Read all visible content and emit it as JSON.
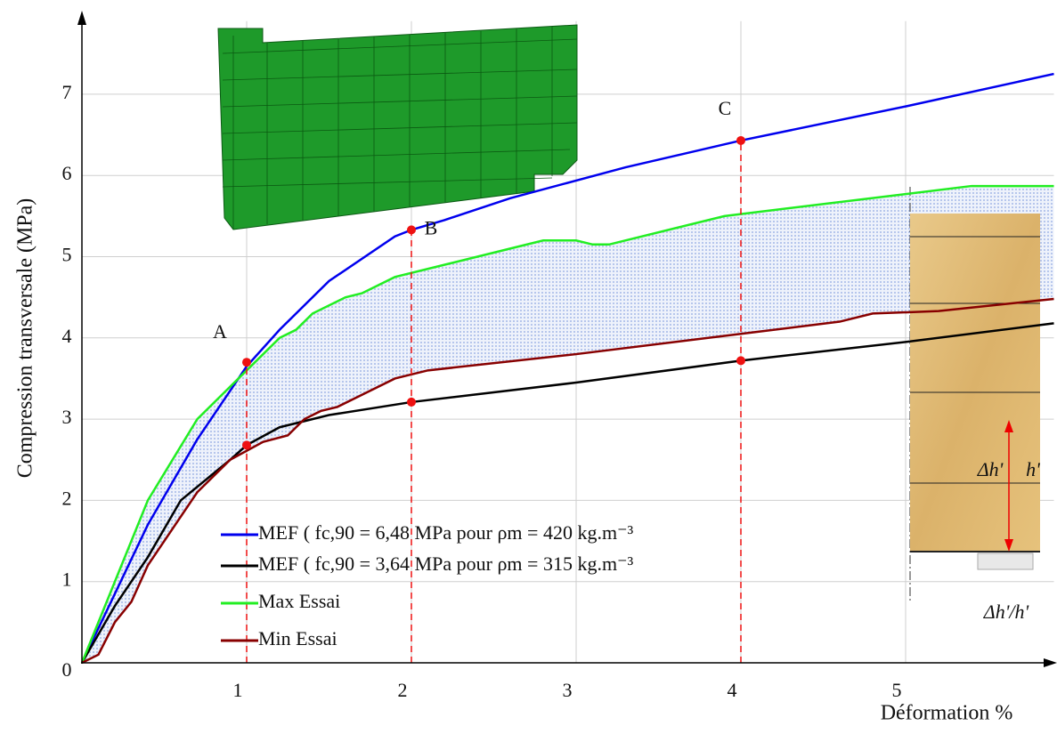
{
  "chart_data": {
    "type": "line",
    "ylabel": "Compression transversale (MPa)",
    "xlabel": "Déformation %",
    "xlim": [
      0,
      5.9
    ],
    "ylim": [
      0,
      7.9
    ],
    "xticks": [
      1,
      2,
      3,
      4,
      5
    ],
    "yticks": [
      0,
      1,
      2,
      3,
      4,
      5,
      6,
      7
    ],
    "grid": true,
    "series": [
      {
        "name": "MEF ( fc,90 = 6,48 MPa  pour  ρm = 420 kg.m⁻³",
        "color": "#0000ee",
        "x": [
          0,
          0.4,
          0.7,
          1.0,
          1.2,
          1.5,
          1.9,
          2.0,
          2.2,
          2.6,
          3.3,
          4.0,
          5.0,
          5.9
        ],
        "values": [
          0,
          1.7,
          2.75,
          3.65,
          4.1,
          4.7,
          5.25,
          5.33,
          5.45,
          5.72,
          6.1,
          6.43,
          6.85,
          7.25
        ]
      },
      {
        "name": "MEF ( fc,90 = 3,64 MPa  pour  ρm = 315 kg.m⁻³",
        "color": "#000000",
        "x": [
          0,
          0.2,
          0.4,
          0.6,
          0.9,
          1.0,
          1.2,
          1.5,
          2.0,
          3.0,
          4.0,
          5.0,
          5.9
        ],
        "values": [
          0,
          0.7,
          1.3,
          2.0,
          2.5,
          2.68,
          2.9,
          3.05,
          3.21,
          3.45,
          3.72,
          3.95,
          4.18
        ]
      },
      {
        "name": "Max Essai",
        "color": "#22ee22",
        "x": [
          0,
          0.4,
          0.7,
          1.0,
          1.2,
          1.3,
          1.4,
          1.6,
          1.7,
          1.9,
          2.2,
          2.6,
          2.8,
          3.0,
          3.1,
          3.2,
          3.9,
          5.4,
          5.9
        ],
        "values": [
          0,
          2.0,
          3.0,
          3.6,
          4.0,
          4.1,
          4.3,
          4.5,
          4.55,
          4.75,
          4.9,
          5.1,
          5.2,
          5.2,
          5.15,
          5.15,
          5.5,
          5.87,
          5.87
        ]
      },
      {
        "name": "Min Essai",
        "color": "#880000",
        "x": [
          0,
          0.1,
          0.2,
          0.3,
          0.4,
          0.7,
          0.9,
          1.1,
          1.25,
          1.35,
          1.45,
          1.55,
          1.7,
          1.9,
          2.1,
          3.0,
          4.0,
          4.6,
          4.8,
          5.2,
          5.9
        ],
        "values": [
          0,
          0.1,
          0.5,
          0.75,
          1.2,
          2.1,
          2.5,
          2.72,
          2.8,
          3.0,
          3.1,
          3.15,
          3.3,
          3.5,
          3.6,
          3.8,
          4.05,
          4.2,
          4.3,
          4.33,
          4.48
        ]
      }
    ],
    "markers": {
      "labels": [
        "A",
        "B",
        "C"
      ],
      "x": [
        1.0,
        2.0,
        4.0
      ],
      "upper": [
        3.7,
        5.33,
        6.43
      ],
      "lower": [
        2.68,
        3.21,
        3.72
      ],
      "color": "#ee1111"
    },
    "annotations": [
      "Δh'",
      "h'",
      "Δh'/h'"
    ]
  }
}
